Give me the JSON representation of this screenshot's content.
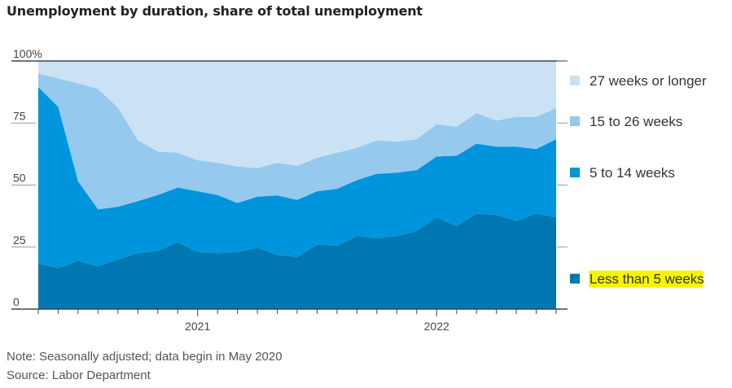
{
  "chart_data": {
    "type": "area",
    "stacked": true,
    "title": "Unemployment by duration, share of total unemployment",
    "xlabel": "",
    "ylabel": "",
    "ylim": [
      0,
      100
    ],
    "y_ticks": [
      "100%",
      "75",
      "50",
      "25",
      "0"
    ],
    "x_tick_labels": [
      {
        "label": "2021",
        "x": "2021-01"
      },
      {
        "label": "2022",
        "x": "2022-01"
      }
    ],
    "grid": false,
    "legend_position": "right",
    "x": [
      "2020-05",
      "2020-06",
      "2020-07",
      "2020-08",
      "2020-09",
      "2020-10",
      "2020-11",
      "2020-12",
      "2021-01",
      "2021-02",
      "2021-03",
      "2021-04",
      "2021-05",
      "2021-06",
      "2021-07",
      "2021-08",
      "2021-09",
      "2021-10",
      "2021-11",
      "2021-12",
      "2022-01",
      "2022-02",
      "2022-03",
      "2022-04",
      "2022-05",
      "2022-06",
      "2022-07"
    ],
    "series": [
      {
        "name": "Less than 5 weeks",
        "color": "#0077b0",
        "values": [
          18.5,
          16.5,
          19.5,
          17.2,
          20,
          22.5,
          23.5,
          27,
          23,
          22.5,
          23,
          24.8,
          21.8,
          21,
          26,
          25.5,
          29.5,
          28.5,
          29.5,
          31.5,
          37,
          33.5,
          38.5,
          38,
          35.5,
          38.5,
          37
        ]
      },
      {
        "name": "5 to 14 weeks",
        "color": "#0094dc",
        "values": [
          71,
          65,
          32,
          23,
          21.2,
          21,
          22.5,
          22,
          24.5,
          23.5,
          19.8,
          20.5,
          24,
          23,
          21.5,
          23,
          22.5,
          26,
          25.5,
          24.5,
          24.5,
          28.3,
          28.2,
          27.5,
          30,
          26,
          31.5
        ]
      },
      {
        "name": "15 to 26 weeks",
        "color": "#95c9ed",
        "values": [
          5.5,
          11.5,
          39.5,
          48.5,
          40,
          24.5,
          17.5,
          14,
          12.5,
          13,
          14.7,
          11.5,
          13.2,
          13.8,
          13.5,
          14.5,
          13,
          13.5,
          12.5,
          12.5,
          13,
          11.7,
          12.3,
          10.5,
          12,
          13,
          12.5
        ]
      },
      {
        "name": "27 weeks or longer",
        "color": "#cbe2f5",
        "values": [
          5,
          7,
          9,
          11.3,
          18.8,
          32,
          36.5,
          37,
          40,
          41,
          42.5,
          43.2,
          41,
          42.2,
          39,
          37,
          35,
          32,
          32.5,
          31.5,
          25.5,
          26.5,
          21,
          24,
          22.5,
          22.5,
          19
        ]
      }
    ],
    "legend": [
      "27 weeks or longer",
      "15 to 26 weeks",
      "5 to 14 weeks",
      "Less than 5 weeks"
    ],
    "highlighted_legend_entry": "Less than 5 weeks",
    "highlight_color": "#f5f500"
  },
  "notes": {
    "note": "Note: Seasonally adjusted; data begin in May 2020",
    "source": "Source: Labor Department"
  }
}
